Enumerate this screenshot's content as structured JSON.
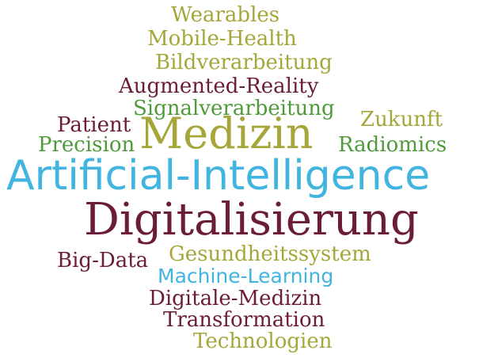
{
  "colors": {
    "olive": "#a6a63a",
    "green": "#4f9a3a",
    "maroon": "#6b1c3a",
    "blue": "#41b4e0"
  },
  "words": [
    {
      "text": "Wearables",
      "color": "olive",
      "weight": 1
    },
    {
      "text": "Mobile-Health",
      "color": "olive",
      "weight": 1
    },
    {
      "text": "Bildverarbeitung",
      "color": "olive",
      "weight": 1
    },
    {
      "text": "Augmented-Reality",
      "color": "maroon",
      "weight": 1
    },
    {
      "text": "Signalverarbeitung",
      "color": "green",
      "weight": 1
    },
    {
      "text": "Zukunft",
      "color": "olive",
      "weight": 1
    },
    {
      "text": "Patient",
      "color": "maroon",
      "weight": 1
    },
    {
      "text": "Medizin",
      "color": "olive",
      "weight": 3
    },
    {
      "text": "Precision",
      "color": "green",
      "weight": 1
    },
    {
      "text": "Radiomics",
      "color": "green",
      "weight": 1
    },
    {
      "text": "Artificial-Intelligence",
      "color": "blue",
      "weight": 4
    },
    {
      "text": "Digitalisierung",
      "color": "maroon",
      "weight": 4
    },
    {
      "text": "Big-Data",
      "color": "maroon",
      "weight": 1
    },
    {
      "text": "Gesundheitssystem",
      "color": "olive",
      "weight": 1
    },
    {
      "text": "Machine-Learning",
      "color": "blue",
      "weight": 1
    },
    {
      "text": "Digitale-Medizin",
      "color": "maroon",
      "weight": 1
    },
    {
      "text": "Transformation",
      "color": "maroon",
      "weight": 1
    },
    {
      "text": "Technologien",
      "color": "olive",
      "weight": 1
    }
  ]
}
